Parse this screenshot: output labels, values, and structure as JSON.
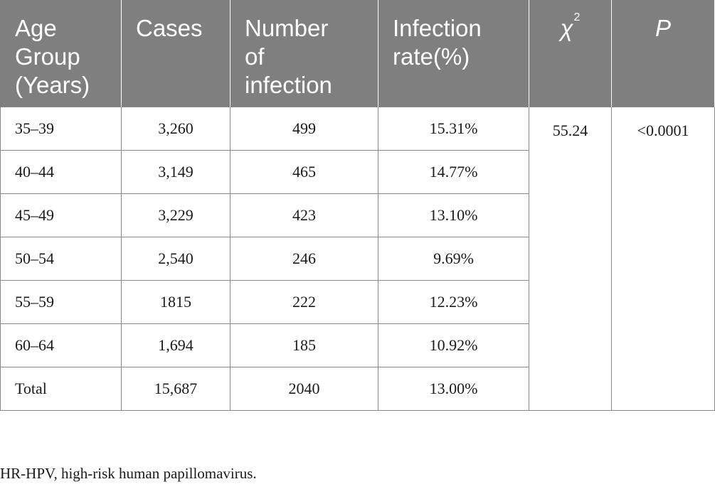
{
  "table": {
    "headers": [
      "Age Group (Years)",
      "Cases",
      "Number of infection",
      "Infection rate(%)",
      "χ2",
      "P"
    ],
    "header_lines": [
      [
        "Age",
        "Group",
        "(Years)"
      ],
      [
        "Cases"
      ],
      [
        "Number",
        "of",
        "infection"
      ],
      [
        "Infection",
        "rate(%)"
      ],
      [
        "χ",
        "2"
      ],
      [
        "P"
      ]
    ],
    "rows": [
      [
        "35–39",
        "3,260",
        "499",
        "15.31%"
      ],
      [
        "40–44",
        "3,149",
        "465",
        "14.77%"
      ],
      [
        "45–49",
        "3,229",
        "423",
        "13.10%"
      ],
      [
        "50–54",
        "2,540",
        "246",
        "9.69%"
      ],
      [
        "55–59",
        "1815",
        "222",
        "12.23%"
      ],
      [
        "60–64",
        "1,694",
        "185",
        "10.92%"
      ],
      [
        "Total",
        "15,687",
        "2040",
        "13.00%"
      ]
    ],
    "chi_square": "55.24",
    "p_value": "<0.0001"
  },
  "footnote": "HR-HPV, high-risk human papillomavirus.",
  "colors": {
    "header_bg": "#7f7f7f",
    "header_text": "#ffffff",
    "grid": "#888888",
    "body_text": "#1a1a1a"
  }
}
